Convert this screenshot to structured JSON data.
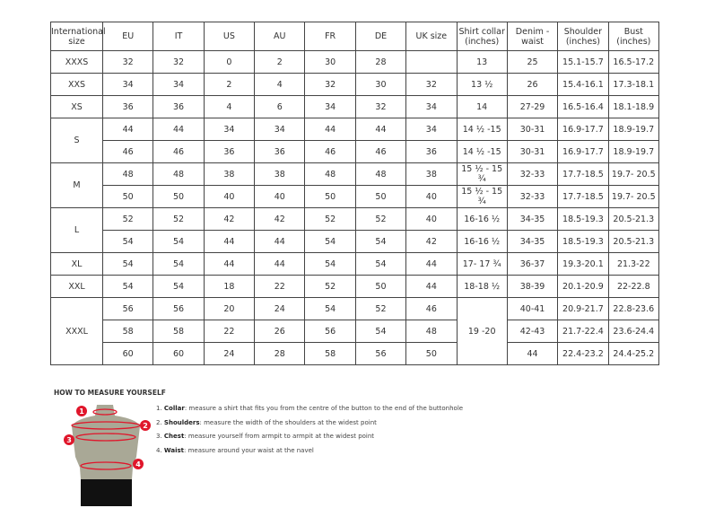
{
  "table": {
    "headers": [
      "International size",
      "EU",
      "IT",
      "US",
      "AU",
      "FR",
      "DE",
      "UK size",
      "Shirt collar (inches)",
      "Denim - waist",
      "Shoulder (inches)",
      "Bust (inches)"
    ],
    "groups": [
      {
        "size": "XXXS",
        "rows": [
          [
            "32",
            "32",
            "0",
            "2",
            "30",
            "28",
            "",
            "13",
            "25",
            "15.1-15.7",
            "16.5-17.2"
          ]
        ]
      },
      {
        "size": "XXS",
        "rows": [
          [
            "34",
            "34",
            "2",
            "4",
            "32",
            "30",
            "32",
            "13 ½",
            "26",
            "15.4-16.1",
            "17.3-18.1"
          ]
        ]
      },
      {
        "size": "XS",
        "rows": [
          [
            "36",
            "36",
            "4",
            "6",
            "34",
            "32",
            "34",
            "14",
            "27-29",
            "16.5-16.4",
            "18.1-18.9"
          ]
        ]
      },
      {
        "size": "S",
        "rows": [
          [
            "44",
            "44",
            "34",
            "34",
            "44",
            "44",
            "34",
            "14 ½ -15",
            "30-31",
            "16.9-17.7",
            "18.9-19.7"
          ],
          [
            "46",
            "46",
            "36",
            "36",
            "46",
            "46",
            "36",
            "14 ½ -15",
            "30-31",
            "16.9-17.7",
            "18.9-19.7"
          ]
        ]
      },
      {
        "size": "M",
        "rows": [
          [
            "48",
            "48",
            "38",
            "38",
            "48",
            "48",
            "38",
            "15 ½ - 15 ¾",
            "32-33",
            "17.7-18.5",
            "19.7- 20.5"
          ],
          [
            "50",
            "50",
            "40",
            "40",
            "50",
            "50",
            "40",
            "15 ½ - 15 ¾",
            "32-33",
            "17.7-18.5",
            "19.7- 20.5"
          ]
        ]
      },
      {
        "size": "L",
        "rows": [
          [
            "52",
            "52",
            "42",
            "42",
            "52",
            "52",
            "40",
            "16-16 ½",
            "34-35",
            "18.5-19.3",
            "20.5-21.3"
          ],
          [
            "54",
            "54",
            "44",
            "44",
            "54",
            "54",
            "42",
            "16-16 ½",
            "34-35",
            "18.5-19.3",
            "20.5-21.3"
          ]
        ]
      },
      {
        "size": "XL",
        "rows": [
          [
            "54",
            "54",
            "44",
            "44",
            "54",
            "54",
            "44",
            "17- 17 ¾",
            "36-37",
            "19.3-20.1",
            "21.3-22"
          ]
        ]
      },
      {
        "size": "XXL",
        "rows": [
          [
            "54",
            "54",
            "18",
            "22",
            "52",
            "50",
            "44",
            "18-18 ½",
            "38-39",
            "20.1-20.9",
            "22-22.8"
          ]
        ]
      },
      {
        "size": "XXXL",
        "collar_merged": true,
        "rows": [
          [
            "56",
            "56",
            "20",
            "24",
            "54",
            "52",
            "46",
            "19 -20",
            "40-41",
            "20.9-21.7",
            "22.8-23.6"
          ],
          [
            "58",
            "58",
            "22",
            "26",
            "56",
            "54",
            "48",
            "19 -20",
            "42-43",
            "21.7-22.4",
            "23.6-24.4"
          ],
          [
            "60",
            "60",
            "24",
            "28",
            "58",
            "56",
            "50",
            "19 -20",
            "44",
            "22.4-23.2",
            "24.4-25.2"
          ]
        ]
      }
    ]
  },
  "howto": {
    "title": "HOW TO MEASURE YOURSELF",
    "items": [
      {
        "num": "1.",
        "term": "Collar",
        "text": ": measure a shirt that fits you from the centre of the button to the end of the buttonhole"
      },
      {
        "num": "2.",
        "term": "Shoulders",
        "text": ": measure the width of the shoulders at the widest point"
      },
      {
        "num": "3.",
        "term": "Chest",
        "text": ": measure yourself from armpit to armpit at the widest point"
      },
      {
        "num": "4.",
        "term": "Waist",
        "text": ": measure around your waist at the navel"
      }
    ],
    "markers": [
      "1",
      "2",
      "3",
      "4"
    ],
    "colors": {
      "marker": "#e0162b",
      "torso": "#a9a896",
      "shorts": "#111111"
    }
  }
}
